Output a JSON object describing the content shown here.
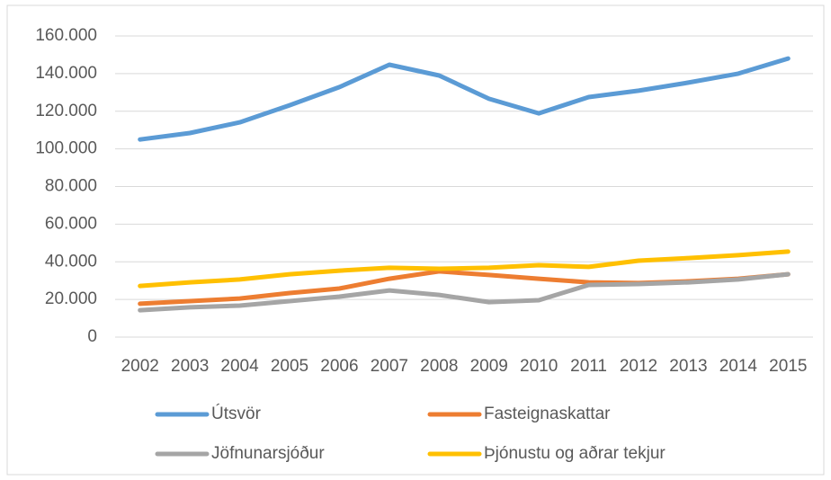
{
  "chart_data": {
    "type": "line",
    "categories": [
      "2002",
      "2003",
      "2004",
      "2005",
      "2006",
      "2007",
      "2008",
      "2009",
      "2010",
      "2011",
      "2012",
      "2013",
      "2014",
      "2015"
    ],
    "series": [
      {
        "name": "Útsvör",
        "color": "#5b9bd5",
        "values": [
          105000,
          108400,
          114100,
          123200,
          132800,
          144700,
          139000,
          126600,
          118900,
          127500,
          130900,
          135200,
          140000,
          148000
        ]
      },
      {
        "name": "Fasteignaskattar",
        "color": "#ed7d31",
        "values": [
          17700,
          19100,
          20500,
          23400,
          25800,
          31000,
          34900,
          33000,
          31000,
          29100,
          28700,
          29600,
          31000,
          33400
        ]
      },
      {
        "name": "Jöfnunarsjóður",
        "color": "#a5a5a5",
        "values": [
          14300,
          15800,
          16700,
          19100,
          21500,
          24800,
          22400,
          18600,
          19600,
          27700,
          28200,
          29100,
          30600,
          33400
        ]
      },
      {
        "name": "Þjónustu og aðrar tekjur",
        "color": "#ffc000",
        "values": [
          27200,
          29100,
          30600,
          33400,
          35300,
          36800,
          36300,
          36800,
          38200,
          37300,
          40600,
          42000,
          43500,
          45400
        ]
      }
    ],
    "ylim": [
      0,
      160000
    ],
    "yticks": [
      0,
      {
        "value": 20000,
        "label": "20.000"
      },
      {
        "value": 40000,
        "label": "40.000"
      },
      {
        "value": 60000,
        "label": "60.000"
      },
      {
        "value": 80000,
        "label": "80.000"
      },
      {
        "value": 100000,
        "label": "100.000"
      },
      {
        "value": 120000,
        "label": "120.000"
      },
      {
        "value": 140000,
        "label": "140.000"
      },
      {
        "value": 160000,
        "label": "160.000"
      }
    ],
    "grid": true,
    "legend": "bottom"
  }
}
